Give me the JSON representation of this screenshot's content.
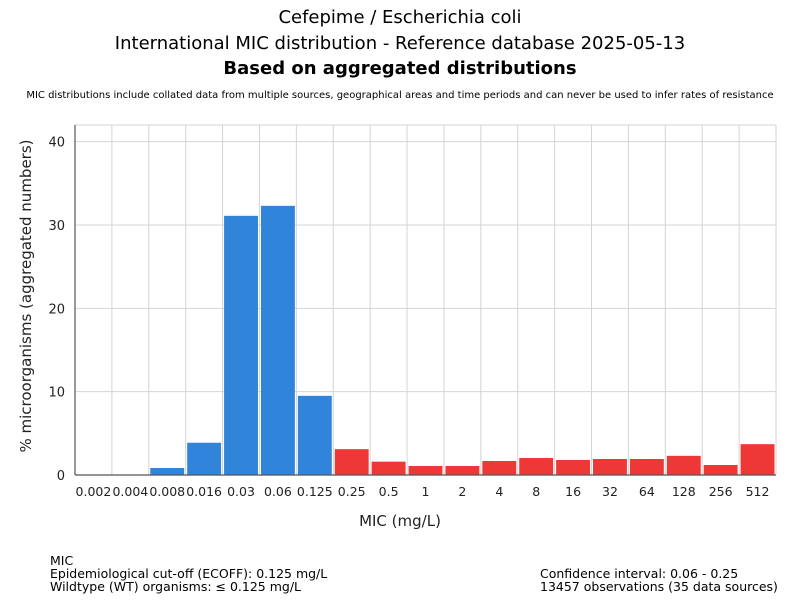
{
  "chart_data": {
    "type": "bar",
    "title": "Cefepime / Escherichia coli",
    "subtitle": "International MIC distribution - Reference database 2025-05-13",
    "subtitle2": "Based on aggregated distributions",
    "note": "MIC distributions include collated data from multiple sources, geographical areas and time periods and can never be used to infer rates of resistance",
    "xlabel": "MIC (mg/L)",
    "ylabel": "% microorganisms (aggregated numbers)",
    "ylim": [
      0,
      42
    ],
    "yticks": [
      0,
      10,
      20,
      30,
      40
    ],
    "grid": true,
    "categories": [
      "0.002",
      "0.004",
      "0.008",
      "0.016",
      "0.03",
      "0.06",
      "0.125",
      "0.25",
      "0.5",
      "1",
      "2",
      "4",
      "8",
      "16",
      "32",
      "64",
      "128",
      "256",
      "512"
    ],
    "values": [
      0,
      0,
      0.84,
      3.87,
      31.1,
      32.3,
      9.5,
      3.1,
      1.6,
      1.08,
      1.08,
      1.68,
      2.04,
      1.8,
      1.92,
      1.92,
      2.3,
      1.2,
      3.7
    ],
    "wildtype_until_index": 6,
    "colors": {
      "wildtype": "#3085db",
      "non_wildtype": "#ee3737"
    }
  },
  "footer": {
    "left": [
      "MIC",
      "Epidemiological cut-off (ECOFF): 0.125 mg/L",
      "Wildtype (WT) organisms: ≤ 0.125 mg/L"
    ],
    "right": [
      "Confidence interval: 0.06 - 0.25",
      "13457 observations (35 data sources)"
    ]
  }
}
